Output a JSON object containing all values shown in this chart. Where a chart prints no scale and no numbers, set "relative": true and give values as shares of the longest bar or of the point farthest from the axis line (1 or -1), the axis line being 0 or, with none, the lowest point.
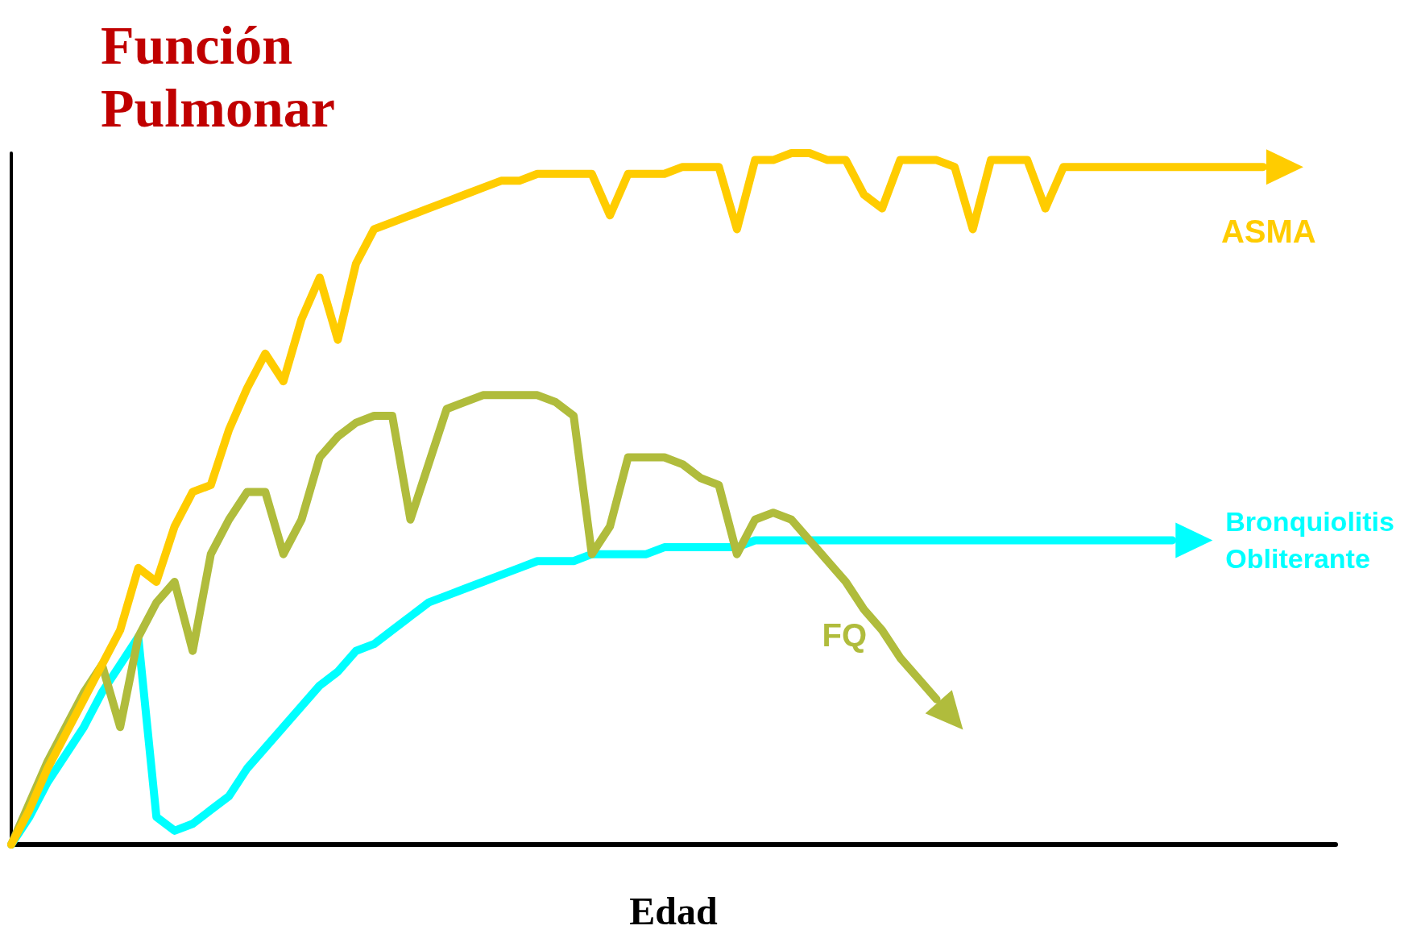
{
  "chart_data": {
    "type": "line",
    "relative": true,
    "ylabel": "Función Pulmonar",
    "xlabel": "Edad",
    "categories": [
      null,
      null,
      null,
      null,
      null,
      null,
      null,
      null,
      null,
      null,
      null,
      null,
      null,
      null,
      null,
      null,
      null,
      null,
      null,
      null,
      null,
      null,
      null,
      null,
      null,
      null,
      null,
      null,
      null,
      null,
      null,
      null,
      null,
      null,
      null,
      null,
      null,
      null,
      null,
      null,
      null,
      null,
      null,
      null,
      null,
      null,
      null,
      null,
      null,
      null,
      null,
      null,
      null,
      null,
      null,
      null,
      null,
      null,
      null,
      null,
      null,
      null,
      null,
      null,
      null,
      null,
      null,
      null,
      null,
      null,
      null,
      null,
      null,
      null
    ],
    "series": [
      {
        "name": "ASMA",
        "color": "#ffcc00",
        "values": [
          0,
          0.05,
          0.11,
          0.16,
          0.21,
          0.26,
          0.31,
          0.4,
          0.38,
          0.46,
          0.51,
          0.52,
          0.6,
          0.66,
          0.71,
          0.67,
          0.76,
          0.82,
          0.73,
          0.84,
          0.89,
          0.9,
          0.91,
          0.92,
          0.93,
          0.94,
          0.95,
          0.96,
          0.96,
          0.97,
          0.97,
          0.97,
          0.97,
          0.91,
          0.97,
          0.97,
          0.97,
          0.98,
          0.98,
          0.98,
          0.89,
          0.99,
          0.99,
          1,
          1,
          0.99,
          0.99,
          0.94,
          0.92,
          0.99,
          0.99,
          0.99,
          0.98,
          0.89,
          0.99,
          0.99,
          0.99,
          0.92,
          0.98,
          0.98,
          0.98,
          0.98,
          0.98,
          0.98,
          0.98,
          0.98,
          0.98,
          0.98,
          0.98,
          0.98,
          null,
          null,
          null,
          null
        ]
      },
      {
        "name": "FQ",
        "color": "#b0bc3c",
        "values": [
          0,
          0.06,
          0.12,
          0.17,
          0.22,
          0.26,
          0.17,
          0.3,
          0.35,
          0.38,
          0.28,
          0.42,
          0.47,
          0.51,
          0.51,
          0.42,
          0.47,
          0.56,
          0.59,
          0.61,
          0.62,
          0.62,
          0.47,
          0.55,
          0.63,
          0.64,
          0.65,
          0.65,
          0.65,
          0.65,
          0.64,
          0.62,
          0.42,
          0.46,
          0.56,
          0.56,
          0.56,
          0.55,
          0.53,
          0.52,
          0.42,
          0.47,
          0.48,
          0.47,
          0.44,
          0.41,
          0.38,
          0.34,
          0.31,
          0.27,
          0.24,
          0.21,
          null,
          null,
          null,
          null,
          null,
          null,
          null,
          null,
          null,
          null,
          null,
          null,
          null,
          null,
          null,
          null,
          null,
          null,
          null,
          null,
          null,
          null
        ]
      },
      {
        "name": "Bronquiolitis Obliterante",
        "color": "#00ffff",
        "values": [
          0,
          0.04,
          0.09,
          0.13,
          0.17,
          0.22,
          0.26,
          0.3,
          0.04,
          0.02,
          0.03,
          0.05,
          0.07,
          0.11,
          0.14,
          0.17,
          0.2,
          0.23,
          0.25,
          0.28,
          0.29,
          0.31,
          0.33,
          0.35,
          0.36,
          0.37,
          0.38,
          0.39,
          0.4,
          0.41,
          0.41,
          0.41,
          0.42,
          0.42,
          0.42,
          0.42,
          0.43,
          0.43,
          0.43,
          0.43,
          0.43,
          0.44,
          0.44,
          0.44,
          0.44,
          0.44,
          0.44,
          0.44,
          0.44,
          0.44,
          0.44,
          0.44,
          0.44,
          0.44,
          0.44,
          0.44,
          0.44,
          0.44,
          0.44,
          0.44,
          0.44,
          0.44,
          0.44,
          0.44,
          0.44,
          null,
          null,
          null,
          null,
          null,
          null,
          null,
          null,
          null
        ]
      }
    ]
  }
}
